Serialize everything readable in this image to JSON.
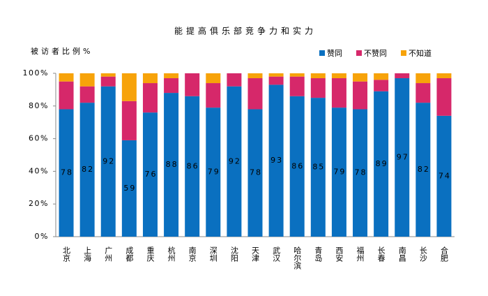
{
  "chart_data": {
    "type": "stacked-bar",
    "title": "能提高俱乐部竞争力和实力",
    "y_label": "被访者比例%",
    "categories": [
      "北京",
      "上海",
      "广州",
      "成都",
      "重庆",
      "杭州",
      "南京",
      "深圳",
      "沈阳",
      "天津",
      "武汉",
      "哈尔滨",
      "青岛",
      "西安",
      "福州",
      "长春",
      "南昌",
      "长沙",
      "合肥"
    ],
    "series": [
      {
        "name": "赞同",
        "color": "#0a70c0",
        "values": [
          78,
          82,
          92,
          59,
          76,
          88,
          86,
          79,
          92,
          78,
          93,
          86,
          85,
          79,
          78,
          89,
          97,
          82,
          74
        ]
      },
      {
        "name": "不赞同",
        "color": "#d6286a",
        "values": [
          17,
          10,
          6,
          24,
          18,
          9,
          14,
          15,
          8,
          19,
          5,
          12,
          12,
          18,
          17,
          7,
          3,
          12,
          23
        ]
      },
      {
        "name": "不知道",
        "color": "#f7a30a",
        "values": [
          5,
          8,
          2,
          17,
          6,
          3,
          0,
          6,
          0,
          3,
          2,
          2,
          3,
          3,
          5,
          4,
          0,
          6,
          3
        ]
      }
    ],
    "ylim": [
      0,
      100
    ],
    "yticks": [
      {
        "value": 0,
        "label": "0%"
      },
      {
        "value": 20,
        "label": "20%"
      },
      {
        "value": 40,
        "label": "40%"
      },
      {
        "value": 60,
        "label": "60%"
      },
      {
        "value": 80,
        "label": "80%"
      },
      {
        "value": 100,
        "label": "100%"
      }
    ],
    "data_labels_series": 0
  }
}
